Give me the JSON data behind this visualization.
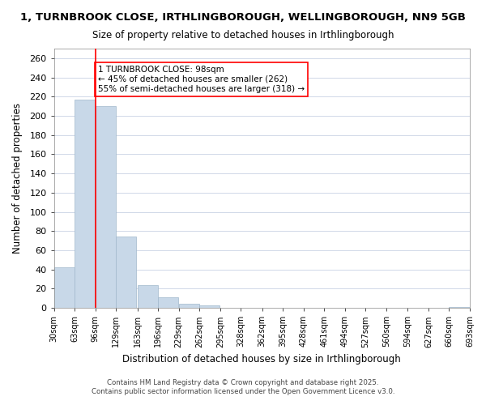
{
  "title": "1, TURNBROOK CLOSE, IRTHLINGBOROUGH, WELLINGBOROUGH, NN9 5GB",
  "subtitle": "Size of property relative to detached houses in Irthlingborough",
  "xlabel": "Distribution of detached houses by size in Irthlingborough",
  "ylabel": "Number of detached properties",
  "bar_color": "#c8d8e8",
  "bar_edge_color": "#a0b8cc",
  "bins": [
    30,
    63,
    96,
    129,
    163,
    196,
    229,
    262,
    295,
    328,
    362,
    395,
    428,
    461,
    494,
    527,
    560,
    594,
    627,
    660,
    693
  ],
  "bin_labels": [
    "30sqm",
    "63sqm",
    "96sqm",
    "129sqm",
    "163sqm",
    "196sqm",
    "229sqm",
    "262sqm",
    "295sqm",
    "328sqm",
    "362sqm",
    "395sqm",
    "428sqm",
    "461sqm",
    "494sqm",
    "527sqm",
    "560sqm",
    "594sqm",
    "627sqm",
    "660sqm",
    "693sqm"
  ],
  "values": [
    42,
    217,
    210,
    74,
    24,
    11,
    4,
    3,
    0,
    0,
    0,
    0,
    0,
    0,
    0,
    0,
    0,
    0,
    0,
    1
  ],
  "ylim": [
    0,
    270
  ],
  "yticks": [
    0,
    20,
    40,
    60,
    80,
    100,
    120,
    140,
    160,
    180,
    200,
    220,
    240,
    260
  ],
  "red_line_x": 96,
  "annotation_text": "1 TURNBROOK CLOSE: 98sqm\n← 45% of detached houses are smaller (262)\n55% of semi-detached houses are larger (318) →",
  "footer_line1": "Contains HM Land Registry data © Crown copyright and database right 2025.",
  "footer_line2": "Contains public sector information licensed under the Open Government Licence v3.0.",
  "background_color": "#ffffff",
  "grid_color": "#d0d8e8"
}
